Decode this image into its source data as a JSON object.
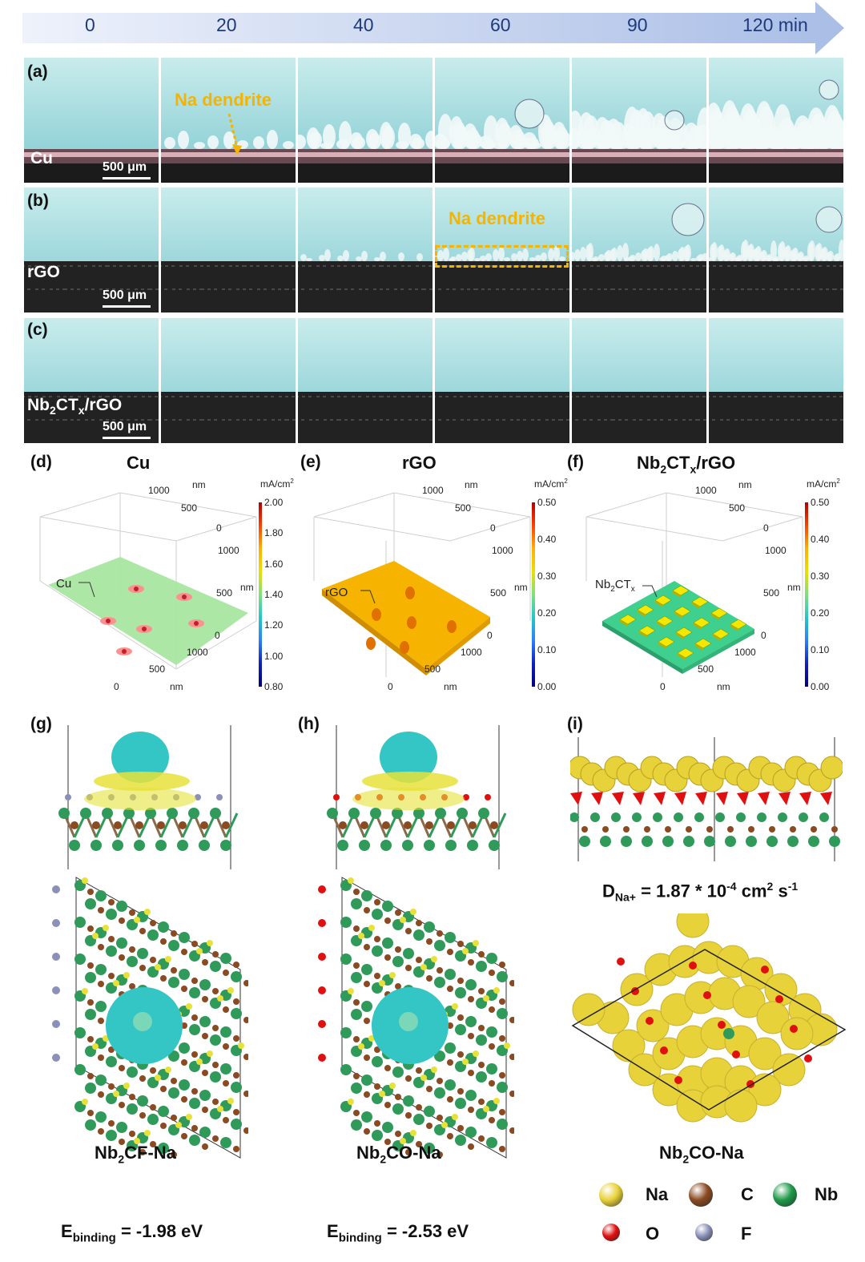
{
  "timeline": {
    "ticks": [
      "0",
      "20",
      "40",
      "60",
      "90",
      "120 min"
    ]
  },
  "optical": {
    "rows": [
      {
        "panel": "(a)",
        "sample": "Cu",
        "scale": "500 μm",
        "dendrite_label": "Na dendrite"
      },
      {
        "panel": "(b)",
        "sample": "rGO",
        "scale": "500 μm",
        "dendrite_label": "Na dendrite"
      },
      {
        "panel": "(c)",
        "sample_main": "Nb",
        "sample_sub1": "2",
        "sample_mid": "CT",
        "sample_sub2": "x",
        "sample_tail": "/rGO",
        "scale": "500 μm"
      }
    ]
  },
  "simulations": {
    "d": {
      "panel": "(d)",
      "title": "Cu",
      "unit": "mA/cm",
      "unit_sup": "2",
      "colorbar": [
        "2.00",
        "1.80",
        "1.60",
        "1.40",
        "1.20",
        "1.00",
        "0.80"
      ],
      "axis_top": [
        "1000",
        "500",
        "0"
      ],
      "axis_right": [
        "1000",
        "500",
        "0"
      ],
      "axis_bottom": [
        "1000",
        "500",
        "0"
      ],
      "nm": "nm",
      "callout": "Cu"
    },
    "e": {
      "panel": "(e)",
      "title": "rGO",
      "unit": "mA/cm",
      "unit_sup": "2",
      "colorbar": [
        "0.50",
        "0.40",
        "0.30",
        "0.20",
        "0.10",
        "0.00"
      ],
      "axis_top": [
        "1000",
        "500",
        "0"
      ],
      "axis_right": [
        "1000",
        "500",
        "0"
      ],
      "axis_bottom": [
        "1000",
        "500",
        "0"
      ],
      "nm": "nm",
      "callout": "rGO"
    },
    "f": {
      "panel": "(f)",
      "title_main": "Nb",
      "title_sub1": "2",
      "title_mid": "CT",
      "title_sub2": "x",
      "title_tail": "/rGO",
      "unit": "mA/cm",
      "unit_sup": "2",
      "colorbar": [
        "0.50",
        "0.40",
        "0.30",
        "0.20",
        "0.10",
        "0.00"
      ],
      "axis_top": [
        "1000",
        "500",
        "0"
      ],
      "axis_right": [
        "1000",
        "500",
        "0"
      ],
      "axis_bottom": [
        "1000",
        "500",
        "0"
      ],
      "nm": "nm",
      "callout_main": "Nb",
      "callout_sub1": "2",
      "callout_mid": "CT",
      "callout_sub2": "x"
    }
  },
  "dft": {
    "g": {
      "panel": "(g)",
      "name_main": "Nb",
      "name_sub": "2",
      "name_tail": "CF-Na",
      "e_label": "E",
      "e_sub": "binding",
      "e_value": "= -1.98 eV"
    },
    "h": {
      "panel": "(h)",
      "name_main": "Nb",
      "name_sub": "2",
      "name_tail": "CO-Na",
      "e_label": "E",
      "e_sub": "binding",
      "e_value": "= -2.53 eV"
    },
    "i": {
      "panel": "(i)",
      "name_main": "Nb",
      "name_sub": "2",
      "name_tail": "CO-Na",
      "d_label": "D",
      "d_sub": "Na+",
      "d_value": "= 1.87 * 10",
      "d_exp": "-4",
      "d_unit": "cm",
      "d_unit_sup": "2",
      "d_s": "s",
      "d_s_sup": "-1"
    }
  },
  "legend": [
    {
      "label": "Na",
      "color": "#e8d23a"
    },
    {
      "label": "C",
      "color": "#8a4a22"
    },
    {
      "label": "Nb",
      "color": "#1f9a4a"
    },
    {
      "label": "O",
      "color": "#e01010"
    },
    {
      "label": "F",
      "color": "#8a90b8"
    }
  ]
}
